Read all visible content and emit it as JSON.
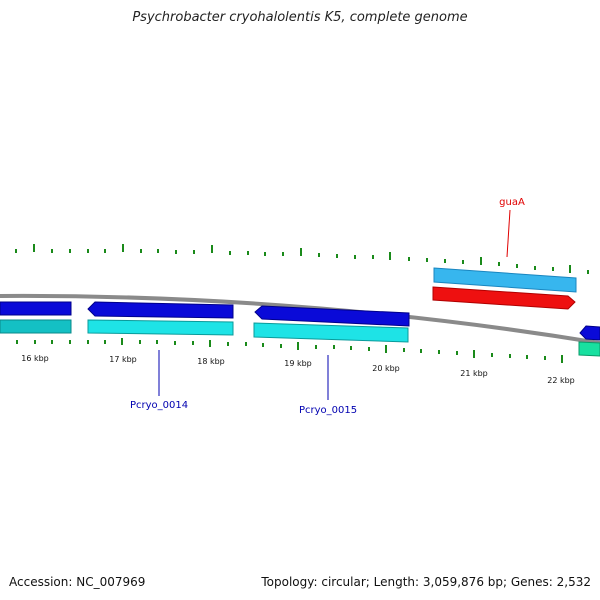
{
  "header": {
    "title": "Psychrobacter cryohalolentis K5, complete genome"
  },
  "footer": {
    "accession": "Accession: NC_007969",
    "summary": "Topology: circular; Length: 3,059,876 bp; Genes: 2,532"
  },
  "ruler": {
    "ticks": [
      "16 kbp",
      "17 kbp",
      "18 kbp",
      "19 kbp",
      "20 kbp",
      "21 kbp",
      "22 kbp"
    ]
  },
  "genes": {
    "labels": [
      "guaA",
      "Pcryo_0014",
      "Pcryo_0015"
    ],
    "label_colors": {
      "guaA": "#e00000",
      "Pcryo_0014": "#0000b0",
      "Pcryo_0015": "#0000b0"
    }
  },
  "colors": {
    "backbone": "#8a8a8a",
    "gene_blue": "#0a0ad8",
    "gene_cyan": "#1ee3e6",
    "gene_teal": "#14c0c4",
    "gene_lightblue": "#37b6ee",
    "gene_red": "#ee1010",
    "gene_green": "#18e0a0",
    "tick_green": "#1a8a1a"
  }
}
